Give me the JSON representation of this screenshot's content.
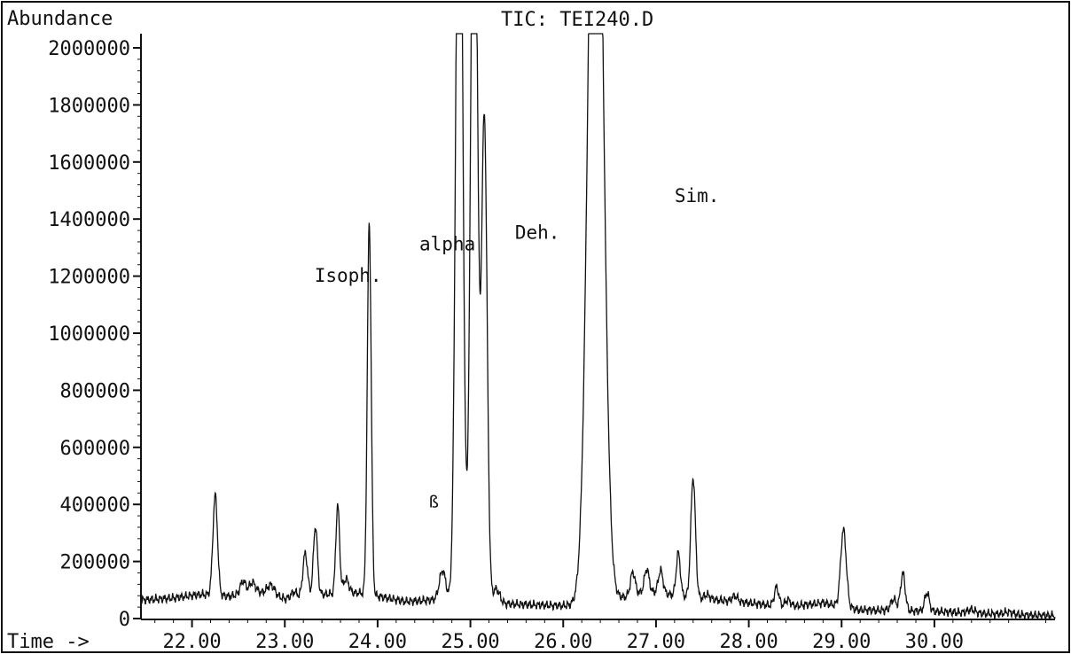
{
  "chart_data": {
    "type": "line",
    "title": "TIC: TEI240.D",
    "ylabel": "Abundance",
    "xlabel": "Time ->",
    "xlim": [
      21.45,
      31.3
    ],
    "ylim": [
      0,
      2050000
    ],
    "grid": false,
    "legend": "none",
    "x_ticks": [
      22.0,
      23.0,
      24.0,
      25.0,
      26.0,
      27.0,
      28.0,
      29.0,
      30.0
    ],
    "x_tick_labels": [
      "22.00",
      "23.00",
      "24.00",
      "25.00",
      "26.00",
      "27.00",
      "28.00",
      "29.00",
      "30.00"
    ],
    "y_ticks": [
      0,
      200000,
      400000,
      600000,
      800000,
      1000000,
      1200000,
      1400000,
      1600000,
      1800000,
      2000000
    ],
    "y_tick_labels": [
      "0",
      "200000",
      "400000",
      "600000",
      "800000",
      "1000000",
      "1200000",
      "1400000",
      "1600000",
      "1800000",
      "2000000"
    ],
    "line_color": "#111111",
    "baseline": [
      [
        21.45,
        65000
      ],
      [
        21.8,
        72000
      ],
      [
        22.1,
        85000
      ],
      [
        22.4,
        78000
      ],
      [
        22.7,
        95000
      ],
      [
        23.0,
        70000
      ],
      [
        23.4,
        85000
      ],
      [
        23.8,
        90000
      ],
      [
        24.3,
        60000
      ],
      [
        24.6,
        65000
      ],
      [
        25.5,
        50000
      ],
      [
        26.0,
        45000
      ],
      [
        26.4,
        55000
      ],
      [
        26.9,
        95000
      ],
      [
        27.5,
        70000
      ],
      [
        28.0,
        55000
      ],
      [
        28.4,
        40000
      ],
      [
        28.8,
        55000
      ],
      [
        29.2,
        30000
      ],
      [
        29.6,
        28000
      ],
      [
        30.0,
        25000
      ],
      [
        30.5,
        18000
      ],
      [
        31.0,
        12000
      ],
      [
        31.3,
        10000
      ]
    ],
    "peaks": [
      {
        "x": 22.25,
        "height": 350000,
        "width": 0.025
      },
      {
        "x": 22.55,
        "height": 45000,
        "width": 0.03
      },
      {
        "x": 22.65,
        "height": 35000,
        "width": 0.03
      },
      {
        "x": 22.85,
        "height": 35000,
        "width": 0.04
      },
      {
        "x": 23.1,
        "height": 20000,
        "width": 0.03
      },
      {
        "x": 23.22,
        "height": 150000,
        "width": 0.025
      },
      {
        "x": 23.33,
        "height": 240000,
        "width": 0.022
      },
      {
        "x": 23.57,
        "height": 310000,
        "width": 0.02
      },
      {
        "x": 23.66,
        "height": 50000,
        "width": 0.03
      },
      {
        "x": 23.91,
        "height": 1300000,
        "width": 0.021
      },
      {
        "x": 24.7,
        "height": 105000,
        "width": 0.035
      },
      {
        "x": 24.88,
        "height": 3200000,
        "width": 0.035
      },
      {
        "x": 25.04,
        "height": 3000000,
        "width": 0.035
      },
      {
        "x": 25.15,
        "height": 1700000,
        "width": 0.03
      },
      {
        "x": 25.28,
        "height": 50000,
        "width": 0.035
      },
      {
        "x": 26.35,
        "height": 3400000,
        "width": 0.075
      },
      {
        "x": 26.75,
        "height": 80000,
        "width": 0.025
      },
      {
        "x": 26.9,
        "height": 80000,
        "width": 0.025
      },
      {
        "x": 27.05,
        "height": 80000,
        "width": 0.025
      },
      {
        "x": 27.24,
        "height": 150000,
        "width": 0.022
      },
      {
        "x": 27.4,
        "height": 420000,
        "width": 0.025
      },
      {
        "x": 27.55,
        "height": 15000,
        "width": 0.03
      },
      {
        "x": 27.85,
        "height": 20000,
        "width": 0.03
      },
      {
        "x": 28.3,
        "height": 65000,
        "width": 0.025
      },
      {
        "x": 28.42,
        "height": 25000,
        "width": 0.03
      },
      {
        "x": 29.02,
        "height": 270000,
        "width": 0.03
      },
      {
        "x": 29.56,
        "height": 40000,
        "width": 0.03
      },
      {
        "x": 29.66,
        "height": 130000,
        "width": 0.025
      },
      {
        "x": 29.92,
        "height": 65000,
        "width": 0.025
      },
      {
        "x": 30.4,
        "height": 12000,
        "width": 0.04
      },
      {
        "x": 30.8,
        "height": 8000,
        "width": 0.05
      }
    ],
    "annotations": [
      {
        "text": "Isoph.",
        "x": 23.32,
        "y": 1180000,
        "size": "normal"
      },
      {
        "text": "alpha",
        "x": 24.45,
        "y": 1290000,
        "size": "normal"
      },
      {
        "text": "ß",
        "x": 24.55,
        "y": 390000,
        "size": "small"
      },
      {
        "text": "Deh.",
        "x": 25.48,
        "y": 1330000,
        "size": "normal"
      },
      {
        "text": "Sim.",
        "x": 27.2,
        "y": 1460000,
        "size": "normal"
      }
    ]
  }
}
